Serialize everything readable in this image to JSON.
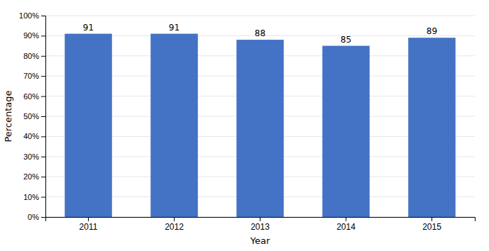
{
  "chart_data": {
    "type": "bar",
    "categories": [
      "2011",
      "2012",
      "2013",
      "2014",
      "2015"
    ],
    "values": [
      91,
      91,
      88,
      85,
      89
    ],
    "color": "#4472c4",
    "xlabel": "Year",
    "ylabel": "Percentage",
    "ylim": [
      0,
      100
    ],
    "yticks": [
      {
        "value": 0,
        "label": "0%"
      },
      {
        "value": 10,
        "label": "10%"
      },
      {
        "value": 20,
        "label": "20%"
      },
      {
        "value": 30,
        "label": "30%"
      },
      {
        "value": 40,
        "label": "40%"
      },
      {
        "value": 50,
        "label": "50%"
      },
      {
        "value": 60,
        "label": "60%"
      },
      {
        "value": 70,
        "label": "70%"
      },
      {
        "value": 80,
        "label": "80%"
      },
      {
        "value": 90,
        "label": "90%"
      },
      {
        "value": 100,
        "label": "100%"
      }
    ],
    "grid": true,
    "data_labels": true
  }
}
